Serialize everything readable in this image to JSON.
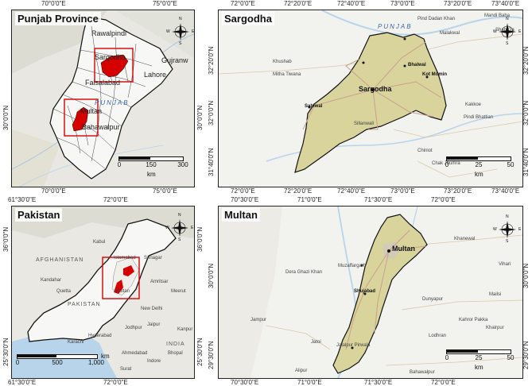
{
  "panels": {
    "punjab": {
      "title": "Punjab Province",
      "top_ticks": [
        "70°0'0\"E",
        "75°0'0\"E"
      ],
      "bottom_ticks": [
        "70°0'0\"E",
        "75°0'0\"E"
      ],
      "left_ticks": [
        "30°0'0\"N"
      ],
      "right_ticks": [
        "30°0'0\"N"
      ],
      "labels": [
        "Rawalpindi",
        "Sargodha",
        "Gujranw",
        "Lahore",
        "Faisalabad",
        "Multan",
        "Bahawalpur",
        "PUNJAB"
      ],
      "scale": {
        "values": [
          "0",
          "150",
          "300"
        ],
        "unit": "km"
      }
    },
    "sargodha": {
      "title": "Sargodha",
      "top_ticks": [
        "72°0'0\"E",
        "72°20'0\"E",
        "72°40'0\"E",
        "73°0'0\"E",
        "73°20'0\"E",
        "73°40'0\"E"
      ],
      "bottom_ticks": [
        "72°0'0\"E",
        "72°20'0\"E",
        "72°40'0\"E",
        "73°0'0\"E",
        "73°20'0\"E",
        "73°40'0\"E"
      ],
      "left_ticks": [
        "32°20'0\"N",
        "32°0'0\"N",
        "31°40'0\"N"
      ],
      "right_ticks": [
        "32°20'0\"N",
        "32°0'0\"N",
        "31°40'0\"N"
      ],
      "labels": [
        "Sargodha",
        "Bhalwal",
        "Kot Momin",
        "Sahiwal",
        "Sillanwali",
        "Khushab",
        "Mitha Tiwana",
        "Malakwal",
        "Pindi Bhattian",
        "Kakkoe",
        "Chiniot",
        "Chak Jhumra",
        "Shah Ga",
        "Pind Dadan Khan",
        "Mandi Baha",
        "PUNJAB"
      ],
      "scale": {
        "values": [
          "0",
          "25",
          "50"
        ],
        "unit": "km"
      }
    },
    "pakistan": {
      "title": "Pakistan",
      "top_ticks": [
        "61°30'0\"E",
        "72°0'0\"E"
      ],
      "bottom_ticks": [
        "61°30'0\"E",
        "72°0'0\"E"
      ],
      "left_ticks": [
        "36°0'0\"N",
        "25°30'0\"N"
      ],
      "right_ticks": [
        "36°0'0\"N",
        "25°30'0\"N"
      ],
      "labels": [
        "AFGHANISTAN",
        "PAKISTAN",
        "INDIA",
        "Islamabad",
        "Srinagar",
        "Amritsar",
        "Multan",
        "Quetta",
        "New Delhi",
        "Jaipur",
        "Jodhpur",
        "Kanpur",
        "Karachi",
        "Hyderabad",
        "Ahmedabad",
        "Bhopal",
        "Indore",
        "Surat",
        "Kabul",
        "Kandahar",
        "Meerut"
      ],
      "scale": {
        "values": [
          "0",
          "500",
          "1,000"
        ],
        "unit": "km"
      }
    },
    "multan": {
      "title": "Multan",
      "top_ticks": [
        "70°30'0\"E",
        "71°0'0\"E",
        "71°30'0\"E",
        "72°0'0\"E"
      ],
      "bottom_ticks": [
        "70°30'0\"E",
        "71°0'0\"E",
        "71°30'0\"E",
        "72°0'0\"E"
      ],
      "left_ticks": [
        "30°0'0\"N",
        "29°30'0\"N"
      ],
      "right_ticks": [
        "30°0'0\"N",
        "29°30'0\"N"
      ],
      "labels": [
        "Multan",
        "Shujabad",
        "Muzaffargarh",
        "Jalalpur Pirwala",
        "Khanewal",
        "Dunyapur",
        "Lodhran",
        "Kahror Pakka",
        "Bahawalpur",
        "Dera Ghazi Khan",
        "Jatoi",
        "Alipur",
        "Mailsi",
        "Khairpur",
        "Vihari",
        "Jampur"
      ],
      "scale": {
        "values": [
          "0",
          "25",
          "50"
        ],
        "unit": "km"
      }
    }
  },
  "compass": {
    "n": "N",
    "s": "S",
    "e": "E",
    "w": "W"
  },
  "colors": {
    "highlight": "#d60000",
    "district_fill": "#d9d49b",
    "boundary": "#111111",
    "inset_box": "#d60000",
    "land": "#ececec",
    "water": "#b8d4ea"
  }
}
